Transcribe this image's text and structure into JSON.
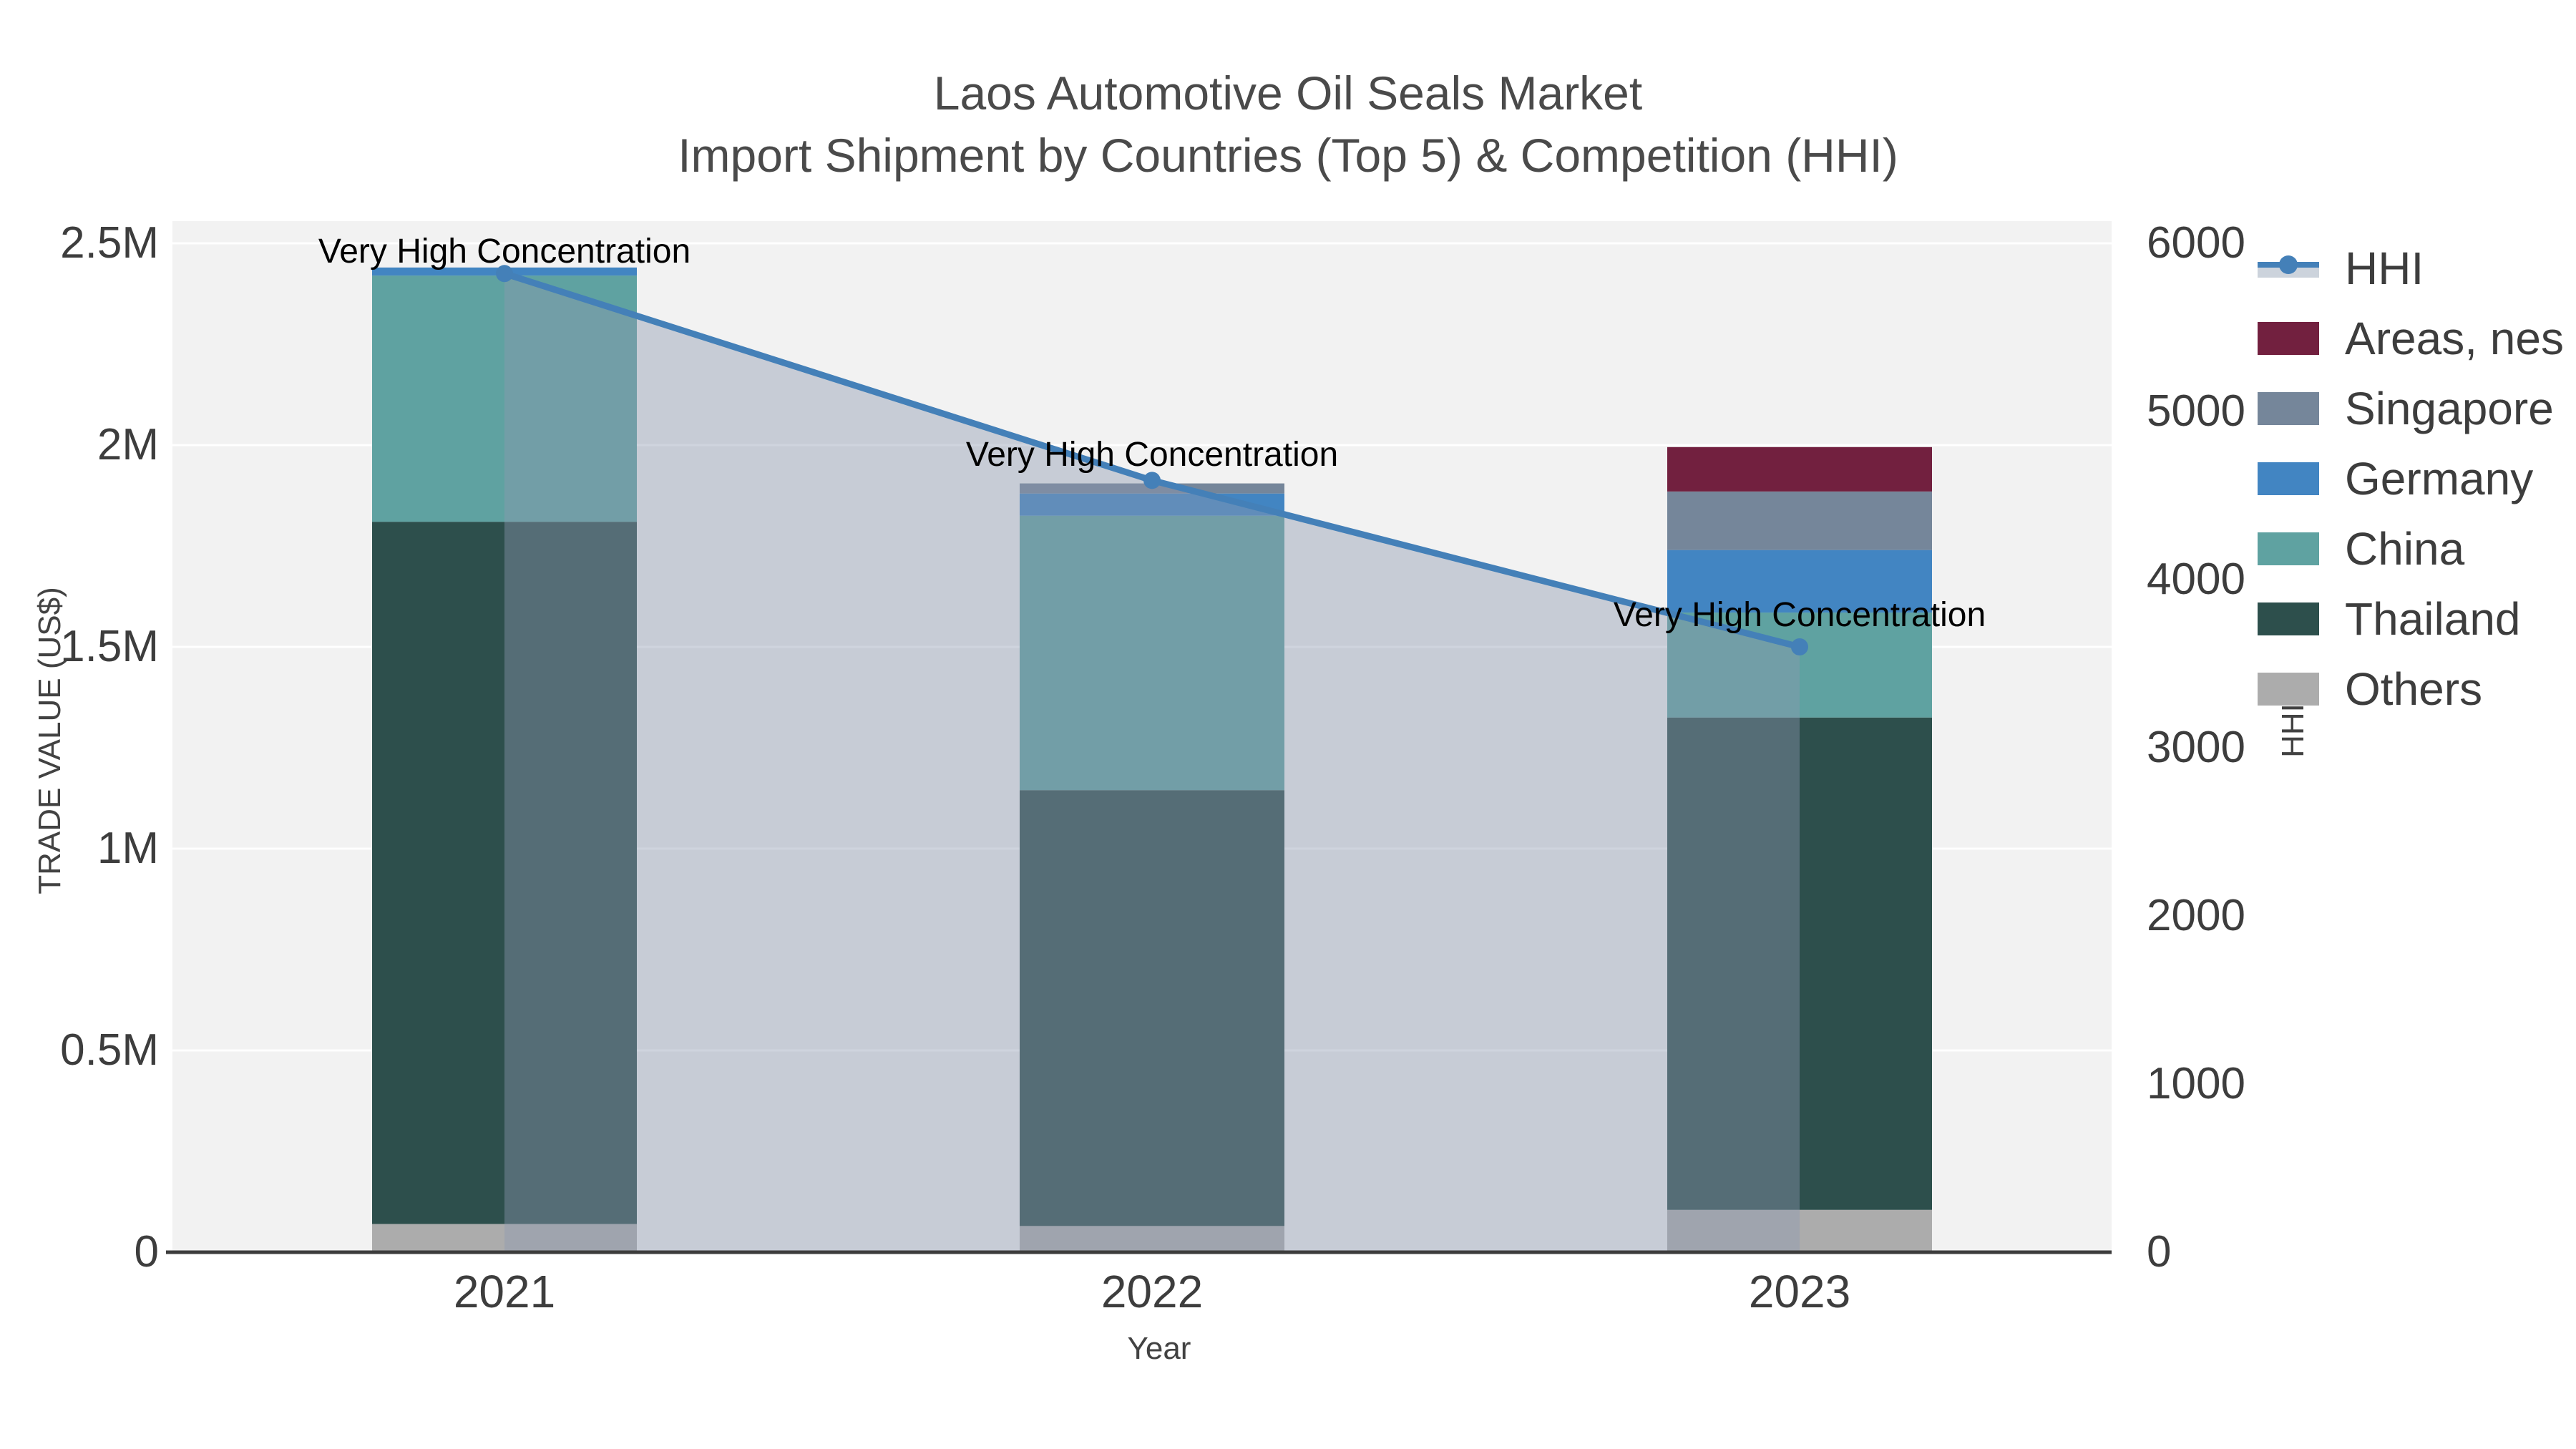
{
  "title": {
    "line1": "Laos Automotive Oil Seals Market",
    "line2": "Import Shipment by Countries (Top 5) & Competition (HHI)"
  },
  "axes": {
    "left": {
      "title": "TRADE VALUE (US$)",
      "ticks": [
        "0",
        "0.5M",
        "1M",
        "1.5M",
        "2M",
        "2.5M"
      ],
      "tick_values": [
        0,
        500000,
        1000000,
        1500000,
        2000000,
        2500000
      ]
    },
    "right": {
      "title": "HHI",
      "ticks": [
        "0",
        "1000",
        "2000",
        "3000",
        "4000",
        "5000",
        "6000"
      ],
      "tick_values": [
        0,
        1000,
        2000,
        3000,
        4000,
        5000,
        6000
      ]
    },
    "x": {
      "title": "Year",
      "ticks": [
        "2021",
        "2022",
        "2023"
      ]
    }
  },
  "annotations": [
    {
      "text": "Very High Concentration",
      "year": "2021"
    },
    {
      "text": "Very High Concentration",
      "year": "2022"
    },
    {
      "text": "Very High Concentration",
      "year": "2023"
    }
  ],
  "legend": [
    {
      "label": "HHI",
      "type": "line",
      "color": "#4480b8",
      "band_color": "#ccd3dc"
    },
    {
      "label": "Areas, nes",
      "type": "box",
      "color": "#72203f"
    },
    {
      "label": "Singapore",
      "type": "box",
      "color": "#75869a"
    },
    {
      "label": "Germany",
      "type": "box",
      "color": "#4285c2"
    },
    {
      "label": "China",
      "type": "box",
      "color": "#5fa2a1"
    },
    {
      "label": "Thailand",
      "type": "box",
      "color": "#2d4f4c"
    },
    {
      "label": "Others",
      "type": "box",
      "color": "#acacac"
    }
  ],
  "colors": {
    "plot_background": "#f2f2f2",
    "gridline": "#ffffff",
    "baseline": "#3c3c3c",
    "hhi_line": "#4480b8",
    "hhi_area_fill": "rgba(140,153,177,0.42)",
    "title_text": "#4a4a4a",
    "tick_text": "#3d3d3d",
    "annotation_text": "#000000"
  },
  "chart_data": {
    "type": "bar+line",
    "title": "Laos Automotive Oil Seals Market — Import Shipment by Countries (Top 5) & Competition (HHI)",
    "categories": [
      "2021",
      "2022",
      "2023"
    ],
    "stack_order_note": "series listed bottom-to-top of the stacked bars; values in US$",
    "series": [
      {
        "name": "Others",
        "color": "#acacac",
        "values": [
          70000,
          65000,
          105000
        ]
      },
      {
        "name": "Thailand",
        "color": "#2d4f4c",
        "values": [
          1740000,
          1080000,
          1220000
        ]
      },
      {
        "name": "China",
        "color": "#5fa2a1",
        "values": [
          610000,
          680000,
          260000
        ]
      },
      {
        "name": "Germany",
        "color": "#4285c2",
        "values": [
          20000,
          55000,
          155000
        ]
      },
      {
        "name": "Singapore",
        "color": "#75869a",
        "values": [
          0,
          25000,
          145000
        ]
      },
      {
        "name": "Areas, nes",
        "color": "#72203f",
        "values": [
          0,
          0,
          110000
        ]
      }
    ],
    "bar_totals": [
      2440000,
      1905000,
      1995000
    ],
    "line_series": {
      "name": "HHI",
      "axis": "right",
      "color": "#4480b8",
      "values": [
        5820,
        4590,
        3600
      ],
      "area_fill": true
    },
    "xlabel": "Year",
    "ylabel_left": "TRADE VALUE (US$)",
    "ylabel_right": "HHI",
    "ylim_left": [
      0,
      2500000
    ],
    "ylim_right": [
      0,
      6000
    ],
    "grid": true,
    "legend_position": "right"
  }
}
